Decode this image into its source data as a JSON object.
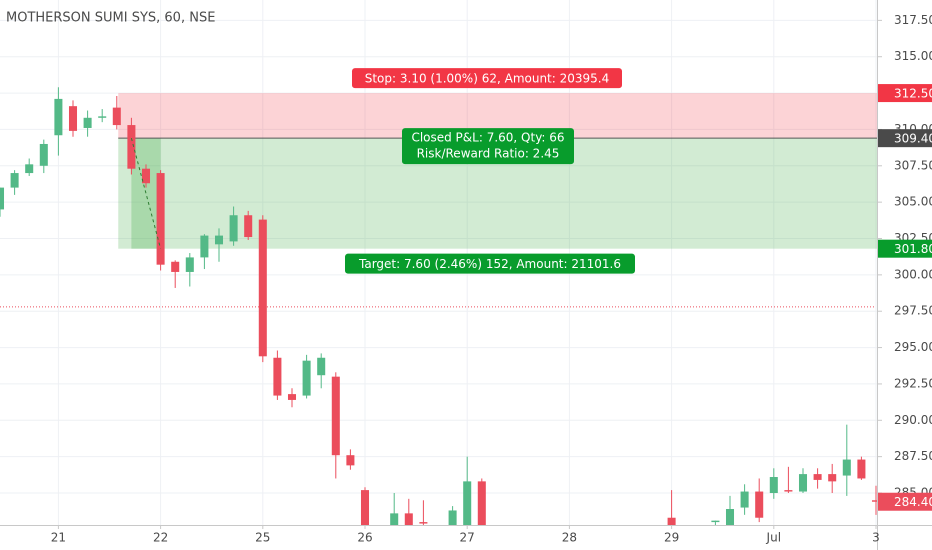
{
  "chart_data": {
    "type": "candlestick",
    "title": "MOTHERSON SUMI SYS, 60, NSE",
    "x": [
      0,
      1,
      2,
      3,
      4,
      5,
      6,
      7,
      8,
      9,
      10,
      11,
      12,
      13,
      14,
      15,
      16,
      17,
      18,
      19,
      20,
      21,
      22,
      23,
      24,
      25,
      27,
      28,
      29,
      31,
      32,
      33,
      46,
      49,
      50,
      51,
      52,
      53,
      54,
      55,
      56,
      57,
      58,
      59,
      60
    ],
    "open": [
      304.5,
      306,
      307,
      307.5,
      309.6,
      311.6,
      310.1,
      310.8,
      311.5,
      310.3,
      307.3,
      307,
      300.9,
      300.2,
      301.2,
      302.1,
      302.3,
      304.1,
      303.8,
      294.3,
      291.8,
      291.7,
      293.1,
      293,
      287.6,
      285.2,
      282.8,
      283.6,
      283,
      282.8,
      282.8,
      285.8,
      283.3,
      283,
      282.8,
      284,
      285.1,
      285,
      285.2,
      285.1,
      286.3,
      286.3,
      286.2,
      287.3,
      284.5
    ],
    "high": [
      306,
      307.2,
      308,
      309.3,
      312.9,
      312,
      311.3,
      311.4,
      312.3,
      310.8,
      307.6,
      307.2,
      301,
      301.5,
      302.8,
      303.2,
      304.7,
      304.4,
      304.1,
      294.8,
      292.2,
      294.5,
      294.6,
      293.3,
      288,
      285.4,
      285,
      284.6,
      284.5,
      284.1,
      287.5,
      286,
      285.2,
      283.1,
      284.8,
      285.6,
      286,
      286.7,
      286.8,
      286.7,
      286.7,
      287,
      289.7,
      287.5,
      285.5
    ],
    "low": [
      304,
      305.5,
      306.8,
      307,
      308.2,
      309.5,
      309.5,
      310.5,
      310,
      306.9,
      306,
      300.3,
      299.1,
      299.2,
      300.4,
      300.9,
      302,
      302.4,
      294,
      291.4,
      290.9,
      291.5,
      292.2,
      286,
      286.6,
      282.8,
      282.8,
      282.8,
      282.8,
      282.8,
      282.8,
      282.8,
      282.8,
      282.8,
      282.8,
      283.5,
      283,
      284.6,
      285,
      285,
      285.3,
      285,
      284.8,
      285.9,
      283.5
    ],
    "close": [
      306,
      307,
      307.6,
      309,
      312.1,
      309.9,
      310.8,
      310.9,
      310.3,
      307.3,
      306.3,
      300.7,
      300.2,
      301.2,
      302.7,
      302.7,
      304.1,
      302.6,
      294.4,
      291.7,
      291.4,
      294.1,
      294.3,
      287.6,
      286.9,
      282.8,
      283.6,
      282.8,
      282.9,
      283.8,
      285.8,
      282.8,
      282.8,
      283.1,
      283.9,
      285.1,
      283.3,
      286.1,
      285.1,
      286.3,
      285.9,
      285.8,
      287.3,
      286,
      284.4
    ],
    "up_color": "#53b987",
    "down_color": "#eb4d5c",
    "xlim": [
      0,
      60
    ],
    "ylim": [
      282.8,
      318.9
    ],
    "xticks": [
      {
        "value": 4,
        "label": "21"
      },
      {
        "value": 11,
        "label": "22"
      },
      {
        "value": 18,
        "label": "25"
      },
      {
        "value": 25,
        "label": "26"
      },
      {
        "value": 32,
        "label": "27"
      },
      {
        "value": 39,
        "label": "28"
      },
      {
        "value": 46,
        "label": "29"
      },
      {
        "value": 53,
        "label": "Jul"
      },
      {
        "value": 60,
        "label": "3"
      }
    ],
    "yticks": [
      {
        "value": 317.5,
        "label": "317.50"
      },
      {
        "value": 315,
        "label": "315.00"
      },
      {
        "value": 312.5,
        "label": "312.50"
      },
      {
        "value": 310,
        "label": "310.00"
      },
      {
        "value": 307.5,
        "label": "307.50"
      },
      {
        "value": 305,
        "label": "305.00"
      },
      {
        "value": 302.5,
        "label": "302.50"
      },
      {
        "value": 300,
        "label": "300.00"
      },
      {
        "value": 297.5,
        "label": "297.50"
      },
      {
        "value": 295,
        "label": "295.00"
      },
      {
        "value": 292.5,
        "label": "292.50"
      },
      {
        "value": 290,
        "label": "290.00"
      },
      {
        "value": 287.5,
        "label": "287.50"
      },
      {
        "value": 285,
        "label": "285.00"
      }
    ],
    "grid": true,
    "reference_line": 297.8,
    "position": {
      "x_start": 8.1,
      "stop": {
        "value": 312.5,
        "label": "312.50"
      },
      "entry": {
        "value": 309.4,
        "label": "309.40"
      },
      "target": {
        "value": 301.8,
        "label": "301.80"
      },
      "trade_x": [
        9,
        11
      ],
      "trade_y": [
        309.4,
        301.8
      ],
      "stop_text": "Stop: 3.10 (1.00%) 62, Amount: 20395.4",
      "pnl_text": "Closed P&L: 7.60, Qty: 66",
      "ratio_text": "Risk/Reward Ratio: 2.45",
      "target_text": "Target: 7.60 (2.46%) 152, Amount: 21101.6"
    },
    "last_price": {
      "value": 284.4,
      "label": "284.40"
    }
  }
}
